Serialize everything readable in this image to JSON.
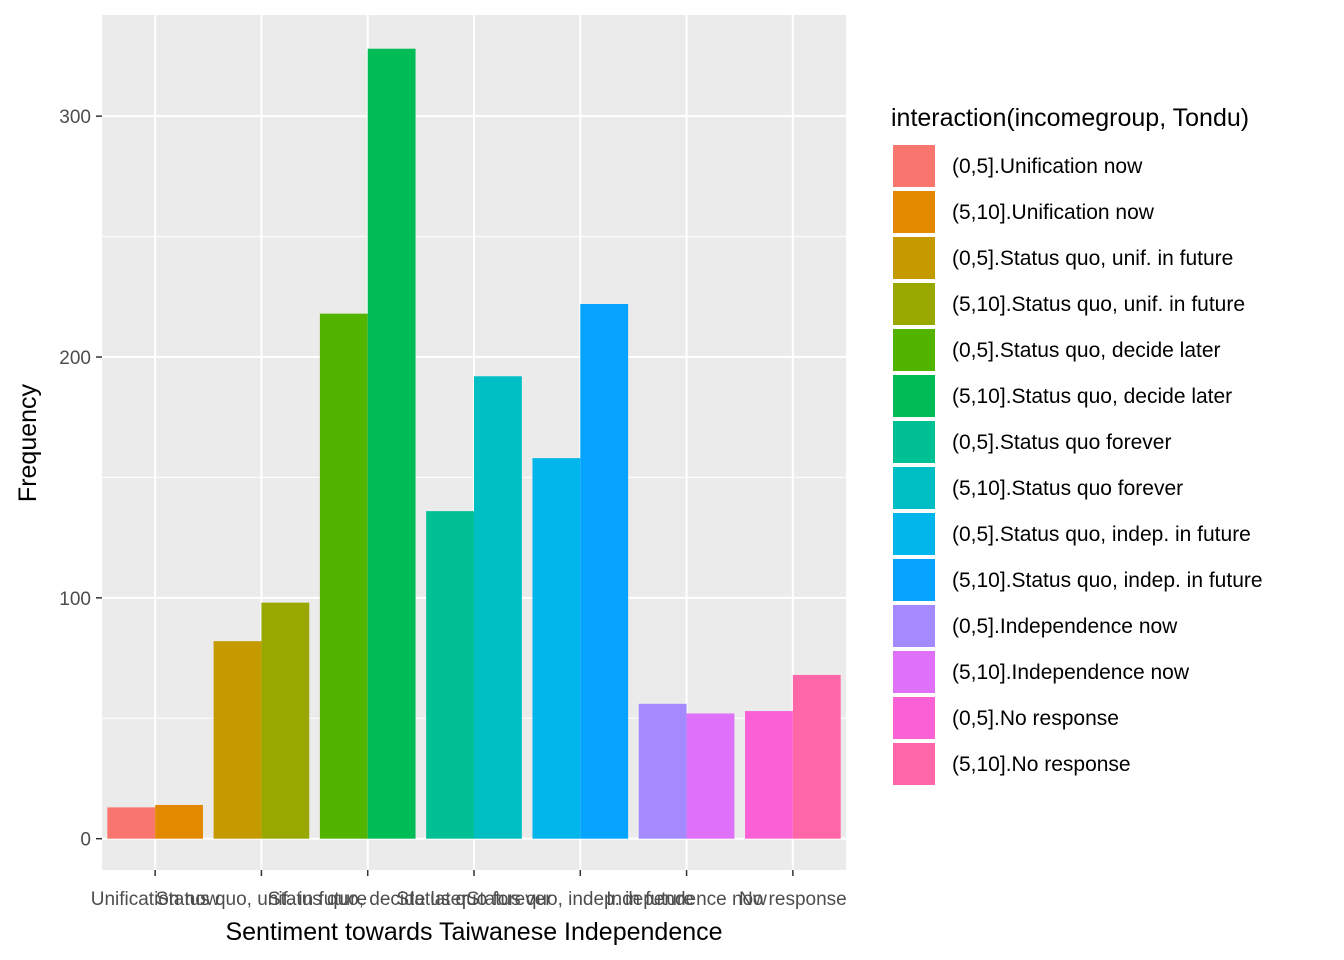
{
  "chart_data": {
    "type": "bar",
    "xlabel": "Sentiment towards Taiwanese Independence",
    "ylabel": "Frequency",
    "ylim": [
      -13,
      342
    ],
    "y_ticks": [
      0,
      100,
      200,
      300
    ],
    "grid": true,
    "legend_position": "right",
    "legend_title": "interaction(incomegroup, Tondu)",
    "categories": [
      "Unification now",
      "Status quo, unif. in future",
      "Status quo, decide later",
      "Status quo forever",
      "Status quo, indep. in future",
      "Independence now",
      "No response"
    ],
    "series": [
      {
        "name": "(0,5]",
        "values": [
          13,
          82,
          218,
          136,
          158,
          56,
          53
        ],
        "colors": [
          "#F8766D",
          "#C49A00",
          "#53B400",
          "#00C094",
          "#00B6EB",
          "#A58AFF",
          "#FB61D7"
        ]
      },
      {
        "name": "(5,10]",
        "values": [
          14,
          98,
          328,
          192,
          222,
          52,
          68
        ],
        "colors": [
          "#E38900",
          "#99A800",
          "#00BC56",
          "#00BFC4",
          "#06A4FF",
          "#DF70F8",
          "#FF66A8"
        ]
      }
    ],
    "legend": [
      {
        "label": "(0,5].Unification now",
        "color": "#F8766D"
      },
      {
        "label": "(5,10].Unification now",
        "color": "#E38900"
      },
      {
        "label": "(0,5].Status quo, unif. in future",
        "color": "#C49A00"
      },
      {
        "label": "(5,10].Status quo, unif. in future",
        "color": "#99A800"
      },
      {
        "label": "(0,5].Status quo, decide later",
        "color": "#53B400"
      },
      {
        "label": "(5,10].Status quo, decide later",
        "color": "#00BC56"
      },
      {
        "label": "(0,5].Status quo forever",
        "color": "#00C094"
      },
      {
        "label": "(5,10].Status quo forever",
        "color": "#00BFC4"
      },
      {
        "label": "(0,5].Status quo, indep. in future",
        "color": "#00B6EB"
      },
      {
        "label": "(5,10].Status quo, indep. in future",
        "color": "#06A4FF"
      },
      {
        "label": "(0,5].Independence now",
        "color": "#A58AFF"
      },
      {
        "label": "(5,10].Independence now",
        "color": "#DF70F8"
      },
      {
        "label": "(0,5].No response",
        "color": "#FB61D7"
      },
      {
        "label": "(5,10].No response",
        "color": "#FF66A8"
      }
    ]
  }
}
